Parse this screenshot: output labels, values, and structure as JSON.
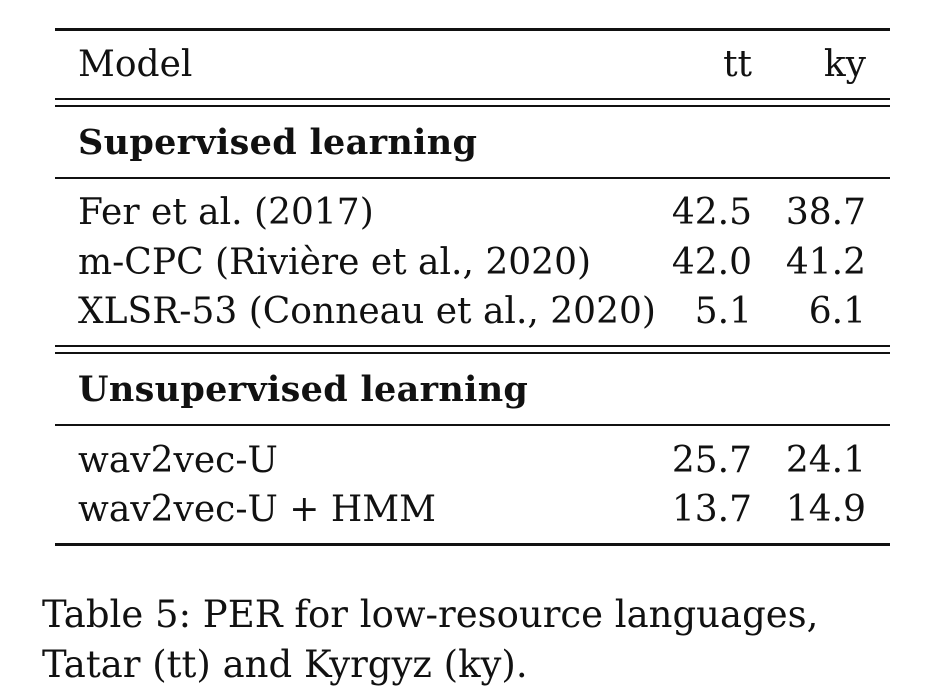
{
  "table": {
    "header": {
      "model": "Model",
      "tt": "tt",
      "ky": "ky"
    },
    "sections": [
      {
        "title": "Supervised learning",
        "rows": [
          {
            "model": "Fer et al. (2017)",
            "tt": "42.5",
            "ky": "38.7"
          },
          {
            "model": "m-CPC (Rivière et al., 2020)",
            "tt": "42.0",
            "ky": "41.2"
          },
          {
            "model": "XLSR-53 (Conneau et al., 2020)",
            "tt": "5.1",
            "ky": "6.1"
          }
        ]
      },
      {
        "title": "Unsupervised learning",
        "rows": [
          {
            "model": "wav2vec-U",
            "tt": "25.7",
            "ky": "24.1"
          },
          {
            "model": "wav2vec-U + HMM",
            "tt": "13.7",
            "ky": "14.9"
          }
        ]
      }
    ]
  },
  "caption": {
    "line1": "Table 5: PER for low-resource languages,",
    "line2": "Tatar (tt) and Kyrgyz (ky)."
  }
}
